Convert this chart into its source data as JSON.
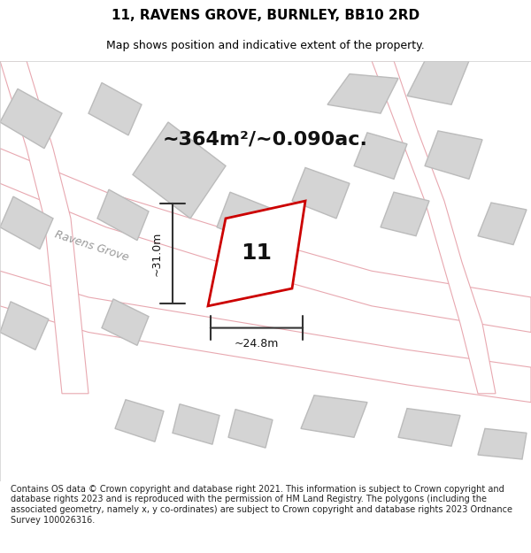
{
  "title": "11, RAVENS GROVE, BURNLEY, BB10 2RD",
  "subtitle": "Map shows position and indicative extent of the property.",
  "area_text": "~364m²/~0.090ac.",
  "property_number": "11",
  "dim_width": "~24.8m",
  "dim_height": "~31.0m",
  "background_color": "#f5f5f5",
  "map_bg": "#f0f0f0",
  "road_color": "#ffffff",
  "road_stroke": "#e8b4b8",
  "building_fill": "#d8d8d8",
  "building_stroke": "#cccccc",
  "property_fill": "#ffffff",
  "property_stroke": "#cc0000",
  "footer_text": "Contains OS data © Crown copyright and database right 2021. This information is subject to Crown copyright and database rights 2023 and is reproduced with the permission of HM Land Registry. The polygons (including the associated geometry, namely x, y co-ordinates) are subject to Crown copyright and database rights 2023 Ordnance Survey 100026316.",
  "title_fontsize": 11,
  "subtitle_fontsize": 9,
  "area_fontsize": 16,
  "footer_fontsize": 7
}
